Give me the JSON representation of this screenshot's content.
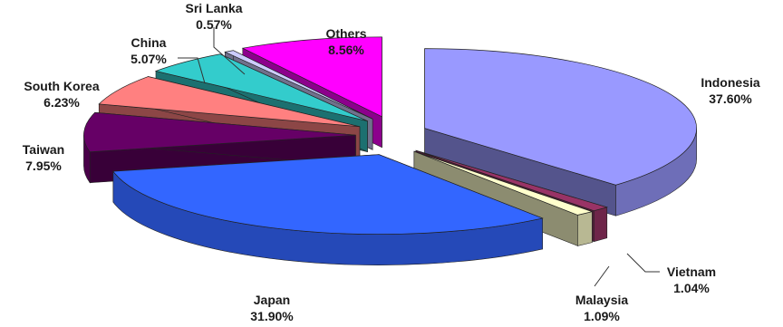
{
  "chart_data": {
    "type": "pie",
    "title": "",
    "categories": [
      "Indonesia",
      "Vietnam",
      "Malaysia",
      "Japan",
      "Taiwan",
      "South Korea",
      "China",
      "Sri Lanka",
      "Others"
    ],
    "values": [
      37.6,
      1.04,
      1.09,
      31.9,
      7.95,
      6.23,
      5.07,
      0.57,
      8.56
    ],
    "value_labels": [
      "37.60%",
      "1.04%",
      "1.09%",
      "31.90%",
      "7.95%",
      "6.23%",
      "5.07%",
      "0.57%",
      "8.56%"
    ],
    "colors": [
      "#9999ff",
      "#993366",
      "#ffffcc",
      "#3366ff",
      "#660066",
      "#ff8080",
      "#33cccc",
      "#ccccff",
      "#ff00ff"
    ],
    "style": "3d-exploded-pie",
    "legend": "none"
  }
}
